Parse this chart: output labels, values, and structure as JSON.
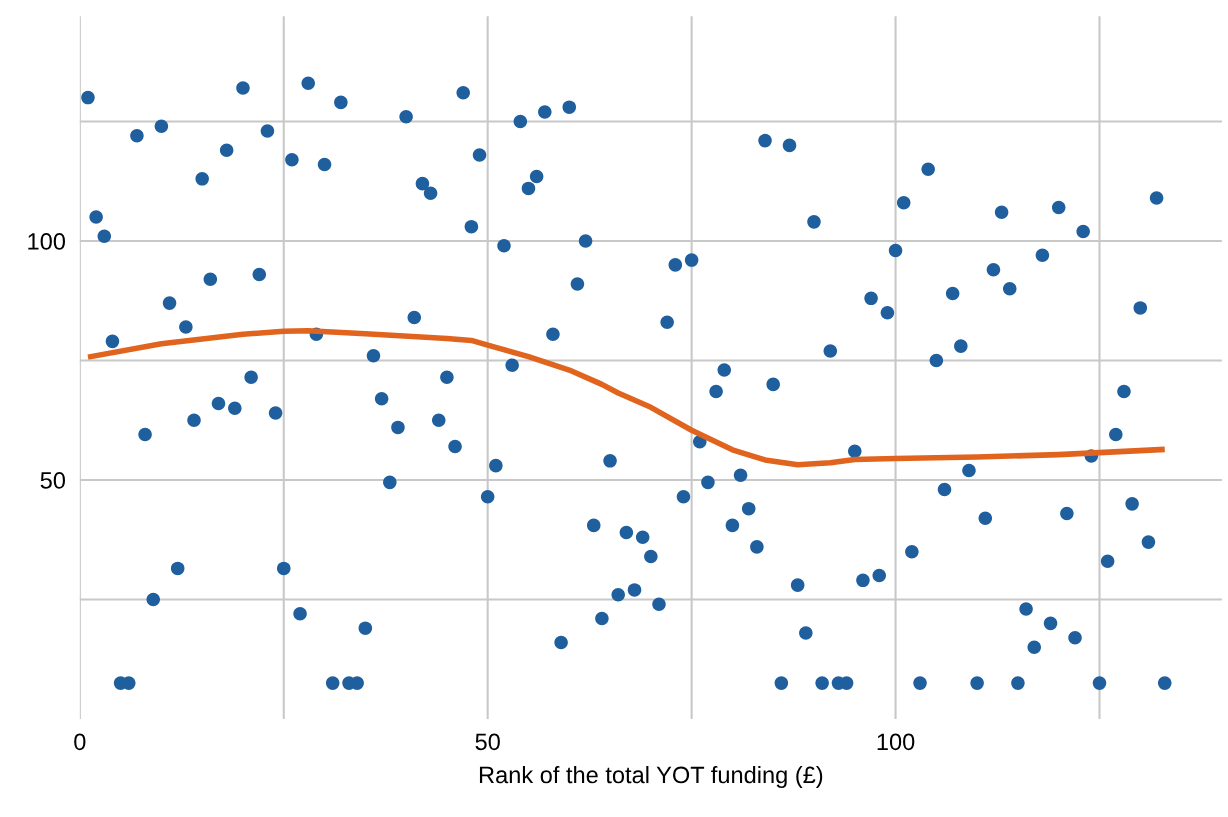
{
  "chart_data": {
    "type": "scatter",
    "xlabel": "Rank of the total YOT funding (£)",
    "xlim": [
      0,
      140
    ],
    "ylim": [
      0,
      147
    ],
    "xticks": [
      0,
      {
        "value": 25,
        "label": null
      },
      50,
      {
        "value": 75,
        "label": null
      },
      100,
      {
        "value": 125,
        "label": null
      }
    ],
    "yticks": [
      {
        "value": 25,
        "label": null
      },
      50,
      {
        "value": 75,
        "label": null
      },
      100,
      {
        "value": 125,
        "label": null
      }
    ],
    "grid": true,
    "legend": false,
    "series": [
      {
        "marker": "circle",
        "color": "#1f5f9e",
        "x": [
          1,
          2,
          3,
          4,
          5,
          6,
          7,
          8,
          9,
          10,
          11,
          12,
          13,
          14,
          15,
          16,
          17,
          18,
          19,
          20,
          21,
          22,
          23,
          24,
          25,
          26,
          27,
          28,
          29,
          30,
          31,
          32,
          33,
          34,
          35,
          36,
          37,
          38,
          39,
          40,
          41,
          42,
          43,
          44,
          45,
          46,
          47,
          48,
          49,
          50,
          51,
          52,
          53,
          54,
          55,
          56,
          57,
          58,
          59,
          60,
          61,
          62,
          63,
          64,
          65,
          66,
          67,
          68,
          69,
          70,
          71,
          72,
          73,
          74,
          75,
          76,
          77,
          78,
          79,
          80,
          81,
          82,
          83,
          84,
          85,
          86,
          87,
          88,
          89,
          90,
          91,
          92,
          93,
          94,
          95,
          96,
          97,
          98,
          99,
          100,
          101,
          102,
          103,
          104,
          105,
          106,
          107,
          108,
          109,
          110,
          111,
          112,
          113,
          114,
          115,
          116,
          117,
          118,
          119,
          120,
          121,
          122,
          123,
          124,
          125,
          126,
          127,
          128,
          129,
          130,
          131,
          132,
          133
        ],
        "values": [
          130,
          105,
          101,
          79,
          7.5,
          7.5,
          122,
          59.5,
          25,
          124,
          87,
          31.5,
          82,
          62.5,
          113,
          92,
          66,
          119,
          65,
          132,
          71.5,
          93,
          123,
          64,
          31.5,
          117,
          22,
          133,
          80.5,
          116,
          7.5,
          129,
          7.5,
          7.5,
          19,
          76,
          67,
          49.5,
          61,
          126,
          84,
          112,
          110,
          62.5,
          71.5,
          57,
          131,
          103,
          118,
          46.5,
          53,
          99,
          74,
          125,
          111,
          113.5,
          127,
          80.5,
          16,
          128,
          91,
          100,
          40.5,
          21,
          54,
          26,
          39,
          27,
          38,
          34,
          24,
          83,
          95,
          46.5,
          96,
          58,
          49.5,
          68.5,
          73,
          40.5,
          51,
          44,
          36,
          121,
          70,
          7.5,
          120,
          28,
          18,
          104,
          7.5,
          77,
          7.5,
          7.5,
          56,
          29,
          88,
          30,
          85,
          98,
          108,
          35,
          7.5,
          115,
          75,
          48,
          89,
          78,
          52,
          7.5,
          42,
          94,
          106,
          90,
          7.5,
          23,
          15,
          97,
          20,
          107,
          43,
          17,
          102,
          55,
          7.5,
          33,
          59.5,
          68.5,
          45,
          86,
          37,
          109,
          7.5
        ]
      },
      {
        "type": "line",
        "color": "#e0641e",
        "x": [
          1,
          10,
          20,
          25,
          28,
          35,
          45,
          48,
          50,
          55,
          60,
          64,
          66,
          70,
          75,
          80,
          84,
          88,
          92,
          95,
          100,
          110,
          120,
          133
        ],
        "values": [
          75.7,
          78.5,
          80.5,
          81.1,
          81.2,
          80.6,
          79.6,
          79.2,
          78.2,
          75.8,
          73,
          70,
          68.2,
          65.2,
          60.4,
          56.3,
          54.2,
          53.2,
          53.6,
          54.3,
          54.5,
          54.8,
          55.3,
          56.4
        ]
      }
    ]
  }
}
